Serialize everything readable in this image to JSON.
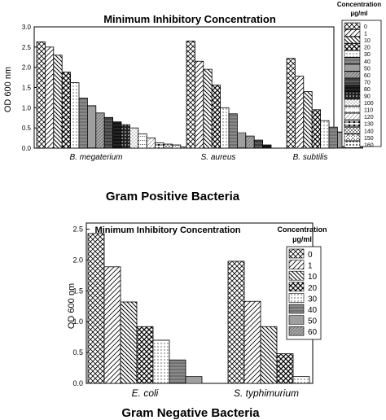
{
  "chart_data": [
    {
      "type": "bar",
      "title": "Minimum Inhibitory Concentration",
      "subtitle": "",
      "xlabel": "Gram Positive Bacteria",
      "ylabel": "OD 600 nm",
      "ylim": [
        0,
        3.0
      ],
      "yticks": [
        "0.0",
        "0.5",
        "1.0",
        "1.5",
        "2.0",
        "2.5",
        "3.0"
      ],
      "grid": false,
      "legend_placement": "right",
      "legend_title": "Concentration",
      "legend_unit": "µg/ml",
      "categories": [
        "B. megaterium",
        "S. aureus",
        "B. subtilis"
      ],
      "series": [
        {
          "name": "0",
          "values": [
            2.63,
            2.65,
            2.22
          ]
        },
        {
          "name": "1",
          "values": [
            2.5,
            2.15,
            1.78
          ]
        },
        {
          "name": "10",
          "values": [
            2.3,
            1.95,
            1.4
          ]
        },
        {
          "name": "20",
          "values": [
            1.88,
            1.56,
            0.95
          ]
        },
        {
          "name": "30",
          "values": [
            1.62,
            1.0,
            0.68
          ]
        },
        {
          "name": "40",
          "values": [
            1.24,
            0.85,
            0.52
          ]
        },
        {
          "name": "50",
          "values": [
            1.05,
            0.38,
            0.4
          ]
        },
        {
          "name": "60",
          "values": [
            0.87,
            0.3,
            0.22
          ]
        },
        {
          "name": "70",
          "values": [
            0.76,
            0.2,
            0.08
          ]
        },
        {
          "name": "80",
          "values": [
            0.65,
            0.08,
            null
          ]
        },
        {
          "name": "90",
          "values": [
            0.58,
            null,
            null
          ]
        },
        {
          "name": "100",
          "values": [
            0.5,
            null,
            null
          ]
        },
        {
          "name": "110",
          "values": [
            0.35,
            null,
            null
          ]
        },
        {
          "name": "120",
          "values": [
            0.25,
            null,
            null
          ]
        },
        {
          "name": "130",
          "values": [
            0.13,
            null,
            null
          ]
        },
        {
          "name": "140",
          "values": [
            0.1,
            null,
            null
          ]
        },
        {
          "name": "150",
          "values": [
            0.08,
            null,
            null
          ]
        },
        {
          "name": "160",
          "values": [
            0.03,
            null,
            null
          ]
        }
      ]
    },
    {
      "type": "bar",
      "title": "Minimum Inhibitory Concentration",
      "subtitle": "",
      "xlabel": "Gram Negative Bacteria",
      "ylabel": "OD 600 nm",
      "ylim": [
        0,
        2.6
      ],
      "yticks": [
        "0.0",
        "0.5",
        "1.0",
        "1.5",
        "2.0",
        "2.5"
      ],
      "grid": false,
      "legend_placement": "right",
      "legend_title": "Concentration",
      "legend_unit": "µg/ml",
      "categories": [
        "E. coli",
        "S. typhimurium"
      ],
      "series": [
        {
          "name": "0",
          "values": [
            2.43,
            1.98
          ]
        },
        {
          "name": "1",
          "values": [
            1.89,
            1.33
          ]
        },
        {
          "name": "10",
          "values": [
            1.32,
            0.92
          ]
        },
        {
          "name": "20",
          "values": [
            0.92,
            0.48
          ]
        },
        {
          "name": "30",
          "values": [
            0.7,
            0.11
          ]
        },
        {
          "name": "40",
          "values": [
            0.38,
            null
          ]
        },
        {
          "name": "50",
          "values": [
            0.11,
            null
          ]
        },
        {
          "name": "60",
          "values": [
            null,
            null
          ]
        }
      ]
    }
  ]
}
